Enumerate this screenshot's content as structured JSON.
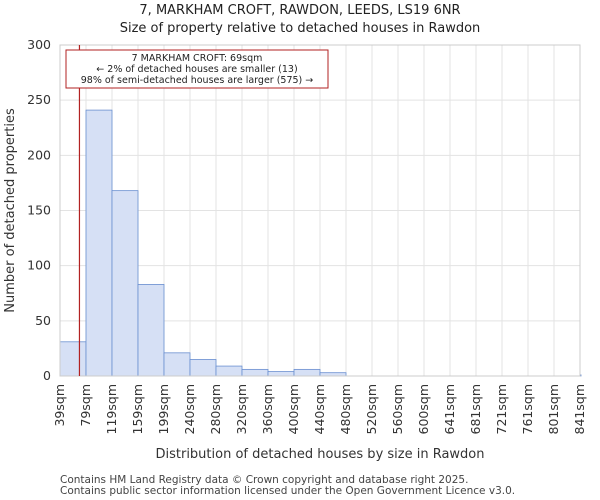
{
  "header": {
    "title_line1": "7, MARKHAM CROFT, RAWDON, LEEDS, LS19 6NR",
    "title_line2": "Size of property relative to detached houses in Rawdon"
  },
  "chart_data": {
    "type": "bar",
    "title": "Size of property relative to detached houses in Rawdon",
    "xlabel": "Distribution of detached houses by size in Rawdon",
    "ylabel": "Number of detached properties",
    "ylim": [
      0,
      300
    ],
    "yticks": [
      0,
      50,
      100,
      150,
      200,
      250,
      300
    ],
    "grid": true,
    "categories": [
      "39sqm",
      "79sqm",
      "119sqm",
      "159sqm",
      "199sqm",
      "240sqm",
      "280sqm",
      "320sqm",
      "360sqm",
      "400sqm",
      "440sqm",
      "480sqm",
      "520sqm",
      "560sqm",
      "600sqm",
      "641sqm",
      "681sqm",
      "721sqm",
      "761sqm",
      "801sqm",
      "841sqm"
    ],
    "values": [
      31,
      241,
      168,
      83,
      21,
      15,
      9,
      6,
      4,
      6,
      3,
      0,
      0,
      0,
      0,
      0,
      0,
      0,
      0,
      0,
      1
    ],
    "bar_color": "#d6e0f5",
    "bar_edge_color": "#6a8fd0",
    "marker": {
      "value_sqm": 69,
      "color": "#b22222",
      "annotation_lines": [
        "7 MARKHAM CROFT: 69sqm",
        "← 2% of detached houses are smaller (13)",
        "98% of semi-detached houses are larger (575) →"
      ]
    }
  },
  "footer": {
    "line1": "Contains HM Land Registry data © Crown copyright and database right 2025.",
    "line2": "Contains public sector information licensed under the Open Government Licence v3.0."
  }
}
